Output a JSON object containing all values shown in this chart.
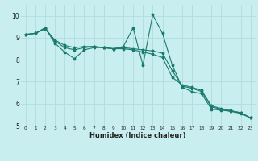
{
  "xlabel": "Humidex (Indice chaleur)",
  "ylabel": "",
  "bg_color": "#c8eef0",
  "grid_color": "#b0dde0",
  "line_color": "#1a7a6e",
  "xlim": [
    -0.5,
    23.5
  ],
  "ylim": [
    5,
    10.5
  ],
  "yticks": [
    5,
    6,
    7,
    8,
    9,
    10
  ],
  "xticks": [
    0,
    1,
    2,
    3,
    4,
    5,
    6,
    7,
    8,
    9,
    10,
    11,
    12,
    13,
    14,
    15,
    16,
    17,
    18,
    19,
    20,
    21,
    22,
    23
  ],
  "series1": {
    "x": [
      0,
      1,
      2,
      3,
      4,
      5,
      6,
      7,
      8,
      9,
      10,
      11,
      12,
      13,
      14,
      15,
      16,
      17,
      18,
      19,
      20,
      21,
      22,
      23
    ],
    "y": [
      9.15,
      9.2,
      9.45,
      8.75,
      8.35,
      8.05,
      8.45,
      8.55,
      8.55,
      8.5,
      8.6,
      9.45,
      7.75,
      10.05,
      9.2,
      7.75,
      6.75,
      6.55,
      6.45,
      5.75,
      5.7,
      5.65,
      5.6,
      5.35
    ]
  },
  "series2": {
    "x": [
      0,
      1,
      2,
      3,
      4,
      5,
      6,
      7,
      8,
      9,
      10,
      11,
      12,
      13,
      14,
      15,
      16,
      17,
      18,
      19,
      20,
      21,
      22,
      23
    ],
    "y": [
      9.15,
      9.2,
      9.45,
      8.85,
      8.55,
      8.45,
      8.55,
      8.6,
      8.55,
      8.5,
      8.55,
      8.5,
      8.45,
      8.4,
      8.3,
      7.5,
      6.8,
      6.7,
      6.55,
      5.85,
      5.75,
      5.65,
      5.55,
      5.35
    ]
  },
  "series3": {
    "x": [
      0,
      1,
      2,
      3,
      4,
      5,
      6,
      7,
      8,
      9,
      10,
      11,
      12,
      13,
      14,
      15,
      16,
      17,
      18,
      19,
      20,
      21,
      22,
      23
    ],
    "y": [
      9.15,
      9.2,
      9.4,
      8.9,
      8.65,
      8.55,
      8.6,
      8.6,
      8.55,
      8.5,
      8.5,
      8.45,
      8.35,
      8.25,
      8.1,
      7.2,
      6.85,
      6.75,
      6.6,
      5.9,
      5.78,
      5.68,
      5.58,
      5.35
    ]
  }
}
